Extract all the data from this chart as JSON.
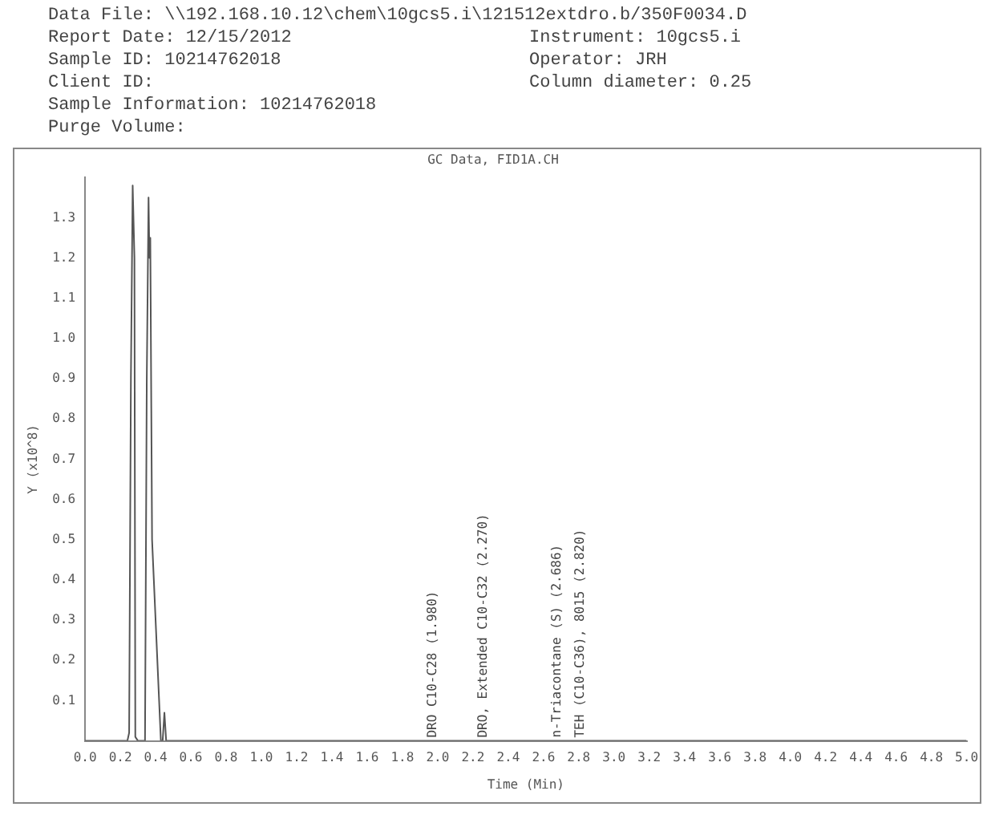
{
  "chart_data": {
    "type": "line",
    "title": "GC Data, FID1A.CH",
    "xlabel": "Time (Min)",
    "ylabel": "Y (x10^8)",
    "annotations": [
      "Data File: \\\\192.168.10.12\\chem\\10gcs5.i\\121512extdro.b/350F0034.D",
      "Report Date: 12/15/2012",
      "Sample ID: 10214762018",
      "Client ID:",
      "Instrument: 10gcs5.i",
      "Sample Information: 10214762018",
      "Purge Volume:",
      "Operator: JRH",
      "Column diameter: 0.25",
      {
        "text": "DRO C10-C28 (1.980)",
        "x": 1.98,
        "y": 0
      },
      {
        "text": "DRO, Extended C10-C32 (2.270)",
        "x": 2.27,
        "y": 0
      },
      {
        "text": "n-Triacontane (S) (2.686)",
        "x": 2.686,
        "y": 0
      },
      {
        "text": "TEH (C10-C36), 8015 (2.820)",
        "x": 2.82,
        "y": 0
      }
    ],
    "x": [
      0,
      0.24,
      0.25,
      0.26,
      0.27,
      0.28,
      0.285,
      0.3,
      0.34,
      0.35,
      0.36,
      0.365,
      0.37,
      0.38,
      0.39,
      0.42,
      0.43,
      0.44,
      0.45,
      0.46,
      0.5,
      1.0,
      2.0,
      3.0,
      4.0,
      5.0
    ],
    "series": [
      {
        "color": "#555555",
        "values": [
          0,
          0,
          0.02,
          0.9,
          1.38,
          1.2,
          0.01,
          0,
          0,
          0.9,
          1.35,
          1.2,
          1.25,
          0.5,
          0.4,
          0.1,
          0,
          0,
          0.07,
          0,
          0,
          0,
          0,
          0,
          0,
          0
        ]
      }
    ],
    "xlim": [
      0,
      5
    ],
    "ylim": [
      0,
      1.4
    ],
    "xticks": [
      {
        "value": 0,
        "label": "0.0"
      },
      0.2,
      0.4,
      0.6,
      0.8,
      {
        "value": 1,
        "label": "1.0"
      },
      1.2,
      1.4,
      1.6,
      1.8,
      {
        "value": 2,
        "label": "2.0"
      },
      2.2,
      2.4,
      2.6,
      2.8,
      {
        "value": 3,
        "label": "3.0"
      },
      3.2,
      3.4,
      3.6,
      3.8,
      {
        "value": 4,
        "label": "4.0"
      },
      4.2,
      4.4,
      4.6,
      4.8,
      {
        "value": 5,
        "label": "5.0"
      }
    ],
    "yticks": [
      0.1,
      0.2,
      0.3,
      0.4,
      0.5,
      0.6,
      0.7,
      0.8,
      0.9,
      {
        "value": 1,
        "label": "1.0"
      },
      1.1,
      1.2,
      1.3
    ],
    "grid": false,
    "legend": false,
    "marker": "none",
    "line_style": "solid"
  }
}
